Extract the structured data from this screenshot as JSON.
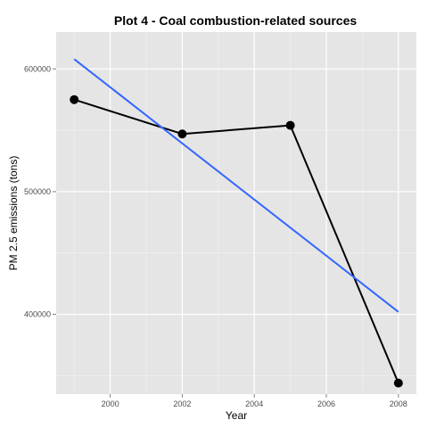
{
  "chart_data": {
    "type": "line",
    "title": "Plot 4 - Coal combustion-related sources",
    "xlabel": "Year",
    "ylabel": "PM 2.5 emissions (tons)",
    "x_ticks": [
      2000,
      2002,
      2004,
      2006,
      2008
    ],
    "x_tick_labels": [
      "2000",
      "2002",
      "2004",
      "2006",
      "2008"
    ],
    "y_ticks": [
      400000,
      500000,
      600000
    ],
    "y_tick_labels": [
      "400000",
      "500000",
      "600000"
    ],
    "xlim": [
      1998.5,
      2008.5
    ],
    "ylim": [
      335000,
      630000
    ],
    "grid": true,
    "background": "#e5e5e5",
    "series": [
      {
        "kind": "line-with-points",
        "color": "#000000",
        "x": [
          1999,
          2002,
          2005,
          2008
        ],
        "y": [
          575000,
          547000,
          554000,
          344000
        ]
      },
      {
        "kind": "linear-fit",
        "color": "#3366ff",
        "x": [
          1999,
          2008
        ],
        "y": [
          608000,
          402000
        ]
      }
    ]
  }
}
